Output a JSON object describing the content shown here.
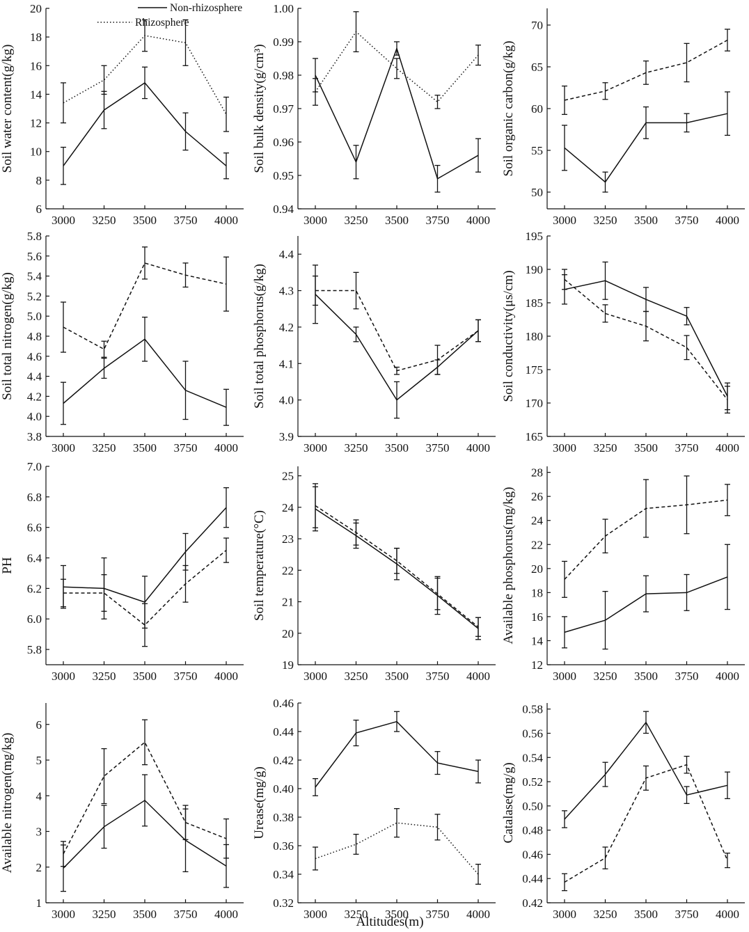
{
  "figure": {
    "xlabel": "Altitudes(m)",
    "legend": {
      "placement": "top-left",
      "entries": [
        {
          "label": "Non-rhizosphere",
          "style": "solid"
        },
        {
          "label": "Rhizosphere",
          "style": "dotted"
        }
      ]
    },
    "colors": {
      "line": "#111111",
      "background": "#ffffff"
    }
  },
  "chart_data": [
    {
      "type": "line",
      "ylabel": "Soil water content(g/kg)",
      "x": [
        3000,
        3250,
        3500,
        3750,
        4000
      ],
      "ylim": [
        6,
        20
      ],
      "yticks": [
        6,
        8,
        10,
        12,
        14,
        16,
        18,
        20
      ],
      "ytick_labels": [
        "6",
        "8",
        "10",
        "12",
        "14",
        "16",
        "18",
        "20"
      ],
      "series": [
        {
          "name": "Non-rhizosphere",
          "style": "solid",
          "values": [
            9.0,
            12.9,
            14.8,
            11.4,
            9.0
          ],
          "err": [
            1.3,
            1.3,
            1.1,
            1.3,
            0.9
          ]
        },
        {
          "name": "Rhizosphere",
          "style": "dotted",
          "values": [
            13.4,
            15.0,
            18.1,
            17.6,
            12.6
          ],
          "err": [
            1.4,
            1.0,
            1.1,
            1.6,
            1.2
          ]
        }
      ]
    },
    {
      "type": "line",
      "ylabel": "Soil bulk density(g/cm³)",
      "x": [
        3000,
        3250,
        3500,
        3750,
        4000
      ],
      "ylim": [
        0.94,
        1.0
      ],
      "yticks": [
        0.94,
        0.95,
        0.96,
        0.97,
        0.98,
        0.99,
        1.0
      ],
      "ytick_labels": [
        "0.94",
        "0.95",
        "0.96",
        "0.97",
        "0.98",
        "0.99",
        "1.00"
      ],
      "series": [
        {
          "name": "Non-rhizosphere",
          "style": "solid",
          "values": [
            0.98,
            0.954,
            0.988,
            0.949,
            0.956
          ],
          "err": [
            0.005,
            0.005,
            0.002,
            0.004,
            0.005
          ]
        },
        {
          "name": "Rhizosphere",
          "style": "dotted",
          "values": [
            0.975,
            0.993,
            0.982,
            0.972,
            0.986
          ],
          "err": [
            0.004,
            0.006,
            0.003,
            0.002,
            0.003
          ]
        }
      ]
    },
    {
      "type": "line",
      "ylabel": "Soil organic carbon(g/kg)",
      "x": [
        3000,
        3250,
        3500,
        3750,
        4000
      ],
      "ylim": [
        48,
        72
      ],
      "yticks": [
        50,
        55,
        60,
        65,
        70
      ],
      "ytick_labels": [
        "50",
        "55",
        "60",
        "65",
        "70"
      ],
      "series": [
        {
          "name": "Non-rhizosphere",
          "style": "solid",
          "values": [
            55.3,
            51.2,
            58.3,
            58.3,
            59.4
          ],
          "err": [
            2.7,
            1.2,
            1.9,
            1.1,
            2.6
          ]
        },
        {
          "name": "Rhizosphere",
          "style": "dashed",
          "values": [
            61.0,
            62.1,
            64.3,
            65.5,
            68.2
          ],
          "err": [
            1.7,
            1.0,
            1.4,
            2.3,
            1.3
          ]
        }
      ]
    },
    {
      "type": "line",
      "ylabel": "Soil total nitrogen(g/kg)",
      "x": [
        3000,
        3250,
        3500,
        3750,
        4000
      ],
      "ylim": [
        3.8,
        5.8
      ],
      "yticks": [
        3.8,
        4.0,
        4.2,
        4.4,
        4.6,
        4.8,
        5.0,
        5.2,
        5.4,
        5.6,
        5.8
      ],
      "ytick_labels": [
        "3.8",
        "4.0",
        "4.2",
        "4.4",
        "4.6",
        "4.8",
        "5.0",
        "5.2",
        "5.4",
        "5.6",
        "5.8"
      ],
      "series": [
        {
          "name": "Non-rhizosphere",
          "style": "solid",
          "values": [
            4.13,
            4.48,
            4.77,
            4.26,
            4.09
          ],
          "err": [
            0.21,
            0.1,
            0.22,
            0.29,
            0.18
          ]
        },
        {
          "name": "Rhizosphere",
          "style": "dashed",
          "values": [
            4.89,
            4.67,
            5.53,
            5.41,
            5.32
          ],
          "err": [
            0.25,
            0.08,
            0.16,
            0.12,
            0.27
          ]
        }
      ]
    },
    {
      "type": "line",
      "ylabel": "Soil total phosphorus(g/kg)",
      "x": [
        3000,
        3250,
        3500,
        3750,
        4000
      ],
      "ylim": [
        3.9,
        4.45
      ],
      "yticks": [
        3.9,
        4.0,
        4.1,
        4.2,
        4.3,
        4.4
      ],
      "ytick_labels": [
        "3.9",
        "4.0",
        "4.1",
        "4.2",
        "4.3",
        "4.4"
      ],
      "series": [
        {
          "name": "Non-rhizosphere",
          "style": "solid",
          "values": [
            4.29,
            4.18,
            4.0,
            4.09,
            4.19
          ],
          "err": [
            0.08,
            0.02,
            0.05,
            0.02,
            0.03
          ]
        },
        {
          "name": "Rhizosphere",
          "style": "dashed",
          "values": [
            4.3,
            4.3,
            4.08,
            4.11,
            4.19
          ],
          "err": [
            0.04,
            0.05,
            0.01,
            0.04,
            0.03
          ]
        }
      ]
    },
    {
      "type": "line",
      "ylabel": "Soil conductivity(μs/cm)",
      "x": [
        3000,
        3250,
        3500,
        3750,
        4000
      ],
      "ylim": [
        165,
        195
      ],
      "yticks": [
        165,
        170,
        175,
        180,
        185,
        190,
        195
      ],
      "ytick_labels": [
        "165",
        "170",
        "175",
        "180",
        "185",
        "190",
        "195"
      ],
      "series": [
        {
          "name": "Non-rhizosphere",
          "style": "solid",
          "values": [
            187.0,
            188.3,
            185.5,
            183.0,
            171.0
          ],
          "err": [
            2.2,
            2.8,
            1.8,
            1.3,
            2.0
          ]
        },
        {
          "name": "Rhizosphere",
          "style": "dashed",
          "values": [
            188.5,
            183.4,
            181.5,
            178.3,
            170.5
          ],
          "err": [
            1.5,
            1.3,
            2.2,
            1.8,
            2.0
          ]
        }
      ]
    },
    {
      "type": "line",
      "ylabel": "PH",
      "x": [
        3000,
        3250,
        3500,
        3750,
        4000
      ],
      "ylim": [
        5.7,
        7.0
      ],
      "yticks": [
        5.8,
        6.0,
        6.2,
        6.4,
        6.6,
        6.8,
        7.0
      ],
      "ytick_labels": [
        "5.8",
        "6.0",
        "6.2",
        "6.4",
        "6.6",
        "6.8",
        "7.0"
      ],
      "series": [
        {
          "name": "Non-rhizosphere",
          "style": "solid",
          "values": [
            6.21,
            6.2,
            6.11,
            6.44,
            6.73
          ],
          "err": [
            0.14,
            0.2,
            0.17,
            0.12,
            0.13
          ]
        },
        {
          "name": "Rhizosphere",
          "style": "dashed",
          "values": [
            6.17,
            6.17,
            5.96,
            6.23,
            6.45
          ],
          "err": [
            0.09,
            0.12,
            0.14,
            0.12,
            0.08
          ]
        }
      ]
    },
    {
      "type": "line",
      "ylabel": "Soil temperature(°C)",
      "x": [
        3000,
        3250,
        3500,
        3750,
        4000
      ],
      "ylim": [
        19,
        25.3
      ],
      "yticks": [
        19,
        20,
        21,
        22,
        23,
        24,
        25
      ],
      "ytick_labels": [
        "19",
        "20",
        "21",
        "22",
        "23",
        "24",
        "25"
      ],
      "series": [
        {
          "name": "Non-rhizosphere",
          "style": "solid",
          "values": [
            23.95,
            23.1,
            22.2,
            21.2,
            20.15
          ],
          "err": [
            0.7,
            0.4,
            0.5,
            0.6,
            0.35
          ]
        },
        {
          "name": "Rhizosphere",
          "style": "dashed",
          "values": [
            24.05,
            23.2,
            22.3,
            21.25,
            20.2
          ],
          "err": [
            0.7,
            0.4,
            0.4,
            0.5,
            0.3
          ]
        }
      ]
    },
    {
      "type": "line",
      "ylabel": "Available phosphorus(mg/kg)",
      "x": [
        3000,
        3250,
        3500,
        3750,
        4000
      ],
      "ylim": [
        12,
        28.5
      ],
      "yticks": [
        12,
        14,
        16,
        18,
        20,
        22,
        24,
        26,
        28
      ],
      "ytick_labels": [
        "12",
        "14",
        "16",
        "18",
        "20",
        "22",
        "24",
        "26",
        "28"
      ],
      "series": [
        {
          "name": "Non-rhizosphere",
          "style": "solid",
          "values": [
            14.7,
            15.7,
            17.9,
            18.0,
            19.3
          ],
          "err": [
            1.3,
            2.4,
            1.5,
            1.5,
            2.7
          ]
        },
        {
          "name": "Rhizosphere",
          "style": "dashed",
          "values": [
            19.1,
            22.7,
            25.0,
            25.3,
            25.7
          ],
          "err": [
            1.5,
            1.4,
            2.4,
            2.4,
            1.3
          ]
        }
      ]
    },
    {
      "type": "line",
      "ylabel": "Available nitrogen(mg/kg)",
      "x": [
        3000,
        3250,
        3500,
        3750,
        4000
      ],
      "ylim": [
        1,
        6.6
      ],
      "yticks": [
        1,
        2,
        3,
        4,
        5,
        6
      ],
      "ytick_labels": [
        "1",
        "2",
        "3",
        "4",
        "5",
        "6"
      ],
      "series": [
        {
          "name": "Non-rhizosphere",
          "style": "solid",
          "values": [
            1.97,
            3.13,
            3.87,
            2.75,
            2.03
          ],
          "err": [
            0.65,
            0.6,
            0.72,
            0.88,
            0.6
          ]
        },
        {
          "name": "Rhizosphere",
          "style": "dashed",
          "values": [
            2.37,
            4.55,
            5.5,
            3.25,
            2.8
          ],
          "err": [
            0.35,
            0.77,
            0.63,
            0.48,
            0.55
          ]
        }
      ]
    },
    {
      "type": "line",
      "ylabel": "Urease(mg/g)",
      "x": [
        3000,
        3250,
        3500,
        3750,
        4000
      ],
      "ylim": [
        0.32,
        0.46
      ],
      "yticks": [
        0.32,
        0.34,
        0.36,
        0.38,
        0.4,
        0.42,
        0.44,
        0.46
      ],
      "ytick_labels": [
        "0.32",
        "0.34",
        "0.36",
        "0.38",
        "0.40",
        "0.42",
        "0.44",
        "0.46"
      ],
      "series": [
        {
          "name": "Non-rhizosphere",
          "style": "solid",
          "values": [
            0.401,
            0.439,
            0.447,
            0.418,
            0.412
          ],
          "err": [
            0.006,
            0.009,
            0.007,
            0.008,
            0.008
          ]
        },
        {
          "name": "Rhizosphere",
          "style": "dotted",
          "values": [
            0.351,
            0.361,
            0.376,
            0.373,
            0.34
          ],
          "err": [
            0.008,
            0.007,
            0.01,
            0.009,
            0.007
          ]
        }
      ]
    },
    {
      "type": "line",
      "ylabel": "Catalase(mg/g)",
      "x": [
        3000,
        3250,
        3500,
        3750,
        4000
      ],
      "ylim": [
        0.42,
        0.585
      ],
      "yticks": [
        0.42,
        0.44,
        0.46,
        0.48,
        0.5,
        0.52,
        0.54,
        0.56,
        0.58
      ],
      "ytick_labels": [
        "0.42",
        "0.44",
        "0.46",
        "0.48",
        "0.50",
        "0.52",
        "0.54",
        "0.56",
        "0.58"
      ],
      "series": [
        {
          "name": "Non-rhizosphere",
          "style": "solid",
          "values": [
            0.489,
            0.526,
            0.569,
            0.509,
            0.517
          ],
          "err": [
            0.007,
            0.01,
            0.009,
            0.007,
            0.011
          ]
        },
        {
          "name": "Rhizosphere",
          "style": "dashed",
          "values": [
            0.437,
            0.457,
            0.523,
            0.534,
            0.455
          ],
          "err": [
            0.007,
            0.009,
            0.01,
            0.007,
            0.006
          ]
        }
      ]
    }
  ]
}
